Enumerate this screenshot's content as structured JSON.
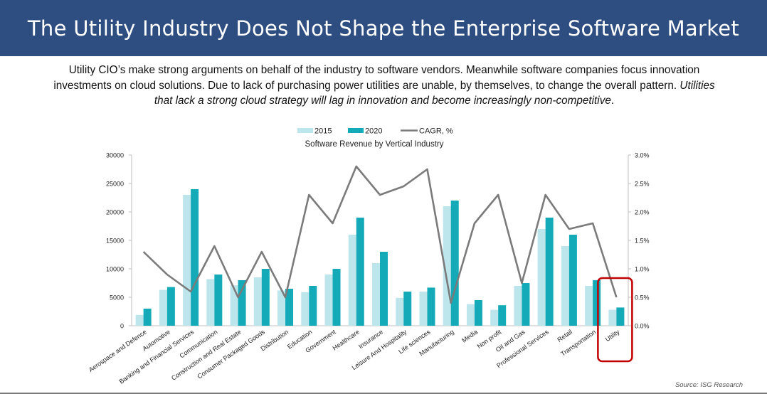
{
  "header": {
    "title": "The Utility Industry Does Not Shape the Enterprise Software Market"
  },
  "intro": {
    "text_regular": "Utility CIO’s make strong arguments on behalf of the industry to software vendors.  Meanwhile software companies focus innovation investments on cloud solutions.  Due to lack of purchasing power utilities are unable, by themselves, to change the overall pattern.  ",
    "text_italic": "Utilities that lack a strong cloud strategy will lag in innovation and become increasingly non-competitive",
    "text_end": "."
  },
  "footer": {
    "source": "Source: ISG Research"
  },
  "highlight": {
    "category": "Utility",
    "color": "#c00000"
  },
  "colors": {
    "series_2015": "#bde5ec",
    "series_2020": "#14aab8",
    "cagr": "#7b7b7b",
    "header_bg": "#2e4d80"
  },
  "chart_data": {
    "type": "bar",
    "title": "Software Revenue by Vertical Industry",
    "categories": [
      "Aerospace and Defence",
      "Automotive",
      "Banking and Financial Services",
      "Communication",
      "Construction and Real Estate",
      "Consumer Packaged Goods",
      "Distribution",
      "Education",
      "Government",
      "Healthcare",
      "Insurance",
      "Leisure And Hospitality",
      "Life sciences",
      "Manufacturing",
      "Media",
      "Non profit",
      "Oil and Gas",
      "Professional Services",
      "Retail",
      "Transportation",
      "Utility"
    ],
    "series": [
      {
        "name": "2015",
        "type": "bar",
        "axis": "left",
        "values": [
          1900,
          6300,
          23000,
          8200,
          7100,
          8500,
          6200,
          5900,
          9000,
          16000,
          11000,
          4900,
          6000,
          21000,
          3800,
          2800,
          7000,
          17000,
          14000,
          7000,
          2800
        ]
      },
      {
        "name": "2020",
        "type": "bar",
        "axis": "left",
        "values": [
          3000,
          6800,
          24000,
          9000,
          8000,
          10000,
          6500,
          7000,
          10000,
          19000,
          13000,
          6000,
          6700,
          22000,
          4500,
          3600,
          7500,
          19000,
          16000,
          8000,
          3200
        ]
      },
      {
        "name": "CAGR, %",
        "type": "line",
        "axis": "right",
        "values": [
          1.3,
          0.9,
          0.6,
          1.4,
          0.5,
          1.3,
          0.5,
          2.3,
          1.8,
          2.8,
          2.3,
          2.45,
          2.75,
          0.4,
          1.8,
          2.3,
          0.75,
          2.3,
          1.7,
          1.8,
          0.5
        ]
      }
    ],
    "y_left": {
      "min": 0,
      "max": 30000,
      "ticks": [
        "0",
        "5000",
        "10000",
        "15000",
        "20000",
        "25000",
        "30000"
      ]
    },
    "y_right": {
      "min": 0,
      "max": 3.0,
      "ticks": [
        "0.0%",
        "0.5%",
        "1.0%",
        "1.5%",
        "2.0%",
        "2.5%",
        "3.0%"
      ]
    },
    "legend": {
      "position": "top-center",
      "labels": [
        "2015",
        "2020",
        "CAGR, %"
      ]
    },
    "grid": false
  }
}
